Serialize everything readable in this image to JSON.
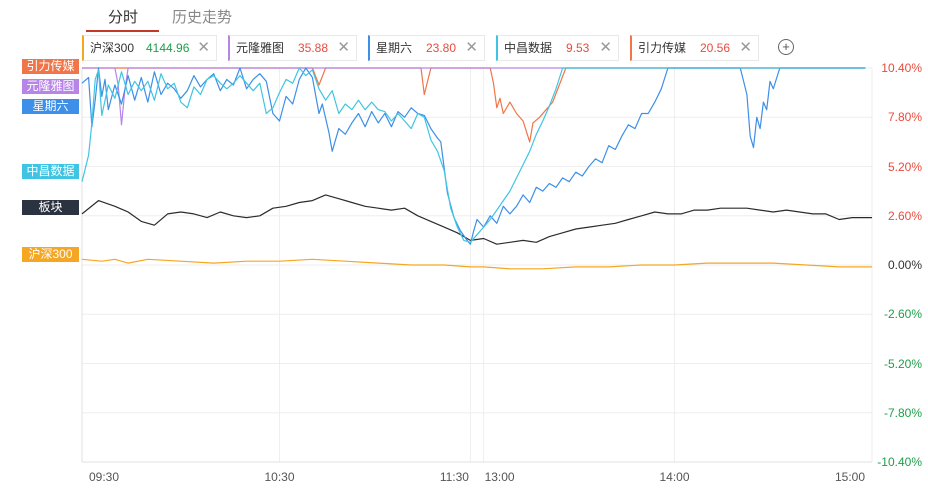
{
  "tabs": [
    {
      "label": "分时",
      "active": true
    },
    {
      "label": "历史走势",
      "active": false
    }
  ],
  "legend": [
    {
      "name": "沪深300",
      "value": "4144.96",
      "color": "#f5a623",
      "value_color": "#1e9e4a"
    },
    {
      "name": "元隆雅图",
      "value": "35.88",
      "color": "#b784e8",
      "value_color": "#e84c3d"
    },
    {
      "name": "星期六",
      "value": "23.80",
      "color": "#3d8fe8",
      "value_color": "#e84c3d"
    },
    {
      "name": "中昌数据",
      "value": "9.53",
      "color": "#3fc5e3",
      "value_color": "#e84c3d"
    },
    {
      "name": "引力传媒",
      "value": "20.56",
      "color": "#f07548",
      "value_color": "#e84c3d"
    }
  ],
  "add_icon": "plus-circle-icon",
  "close_icon": "close-icon",
  "badges": [
    {
      "label": "引力传媒",
      "color": "#f07548"
    },
    {
      "label": "元隆雅图",
      "color": "#b784e8"
    },
    {
      "label": "星期六",
      "color": "#3d8fe8"
    },
    {
      "label": "中昌数据",
      "color": "#3fc5e3"
    },
    {
      "label": "板块",
      "color": "#2c3340"
    },
    {
      "label": "沪深300",
      "color": "#f5a623"
    }
  ],
  "chart_data": {
    "type": "line",
    "y_unit": "%",
    "ylim": [
      -10.4,
      10.4
    ],
    "y_ticks": [
      "10.40%",
      "7.80%",
      "5.20%",
      "2.60%",
      "0.00%",
      "-2.60%",
      "-5.20%",
      "-7.80%",
      "-10.40%"
    ],
    "y_tick_colors": {
      "positive": "#e84c3d",
      "zero": "#333333",
      "negative": "#1e9e4a"
    },
    "x_ticks": [
      "09:30",
      "10:30",
      "11:30",
      "13:00",
      "14:00",
      "15:00"
    ],
    "x_tick_times": [
      0,
      60,
      118,
      122,
      180,
      240
    ],
    "x_range": [
      0,
      240
    ],
    "grid": true,
    "series": [
      {
        "name": "板块",
        "color": "#2c2c2c",
        "points": [
          [
            0,
            2.7
          ],
          [
            5,
            3.4
          ],
          [
            10,
            3.1
          ],
          [
            14,
            2.8
          ],
          [
            18,
            2.3
          ],
          [
            22,
            2.1
          ],
          [
            26,
            2.7
          ],
          [
            30,
            2.8
          ],
          [
            34,
            2.7
          ],
          [
            38,
            2.5
          ],
          [
            42,
            2.8
          ],
          [
            46,
            2.6
          ],
          [
            50,
            2.5
          ],
          [
            54,
            2.6
          ],
          [
            58,
            3.0
          ],
          [
            62,
            3.1
          ],
          [
            66,
            3.3
          ],
          [
            70,
            3.4
          ],
          [
            74,
            3.7
          ],
          [
            78,
            3.5
          ],
          [
            82,
            3.3
          ],
          [
            86,
            3.1
          ],
          [
            90,
            3.0
          ],
          [
            94,
            2.9
          ],
          [
            98,
            3.0
          ],
          [
            102,
            2.6
          ],
          [
            106,
            2.3
          ],
          [
            110,
            2.0
          ],
          [
            114,
            1.7
          ],
          [
            118,
            1.3
          ],
          [
            122,
            1.4
          ],
          [
            126,
            1.1
          ],
          [
            130,
            1.2
          ],
          [
            134,
            1.3
          ],
          [
            138,
            1.2
          ],
          [
            142,
            1.5
          ],
          [
            146,
            1.7
          ],
          [
            150,
            1.9
          ],
          [
            154,
            2.0
          ],
          [
            158,
            2.1
          ],
          [
            162,
            2.2
          ],
          [
            166,
            2.4
          ],
          [
            170,
            2.6
          ],
          [
            174,
            2.8
          ],
          [
            178,
            2.7
          ],
          [
            182,
            2.7
          ],
          [
            186,
            2.9
          ],
          [
            190,
            2.9
          ],
          [
            194,
            3.0
          ],
          [
            198,
            3.0
          ],
          [
            202,
            3.0
          ],
          [
            206,
            2.9
          ],
          [
            210,
            2.8
          ],
          [
            214,
            2.9
          ],
          [
            218,
            2.8
          ],
          [
            222,
            2.7
          ],
          [
            226,
            2.7
          ],
          [
            230,
            2.4
          ],
          [
            234,
            2.5
          ],
          [
            238,
            2.5
          ],
          [
            240,
            2.5
          ]
        ]
      },
      {
        "name": "沪深300",
        "color": "#f5a623",
        "points": [
          [
            0,
            0.3
          ],
          [
            6,
            0.2
          ],
          [
            10,
            0.3
          ],
          [
            14,
            0.1
          ],
          [
            20,
            0.3
          ],
          [
            30,
            0.2
          ],
          [
            40,
            0.1
          ],
          [
            50,
            0.2
          ],
          [
            60,
            0.2
          ],
          [
            70,
            0.3
          ],
          [
            80,
            0.2
          ],
          [
            90,
            0.1
          ],
          [
            100,
            0.0
          ],
          [
            110,
            0.0
          ],
          [
            118,
            -0.1
          ],
          [
            122,
            -0.1
          ],
          [
            130,
            -0.2
          ],
          [
            140,
            -0.2
          ],
          [
            150,
            -0.1
          ],
          [
            160,
            -0.1
          ],
          [
            170,
            0.0
          ],
          [
            180,
            0.0
          ],
          [
            190,
            0.1
          ],
          [
            200,
            0.1
          ],
          [
            210,
            0.1
          ],
          [
            220,
            0.0
          ],
          [
            230,
            -0.1
          ],
          [
            240,
            -0.1
          ]
        ]
      },
      {
        "name": "引力传媒",
        "color": "#f07548",
        "points": [
          [
            0,
            10.4
          ],
          [
            70,
            10.4
          ],
          [
            72,
            9.5
          ],
          [
            74,
            10.4
          ],
          [
            103,
            10.4
          ],
          [
            104,
            9.0
          ],
          [
            106,
            10.4
          ],
          [
            124,
            10.4
          ],
          [
            125,
            9.6
          ],
          [
            126,
            8.3
          ],
          [
            127,
            8.8
          ],
          [
            128,
            8.0
          ],
          [
            130,
            8.6
          ],
          [
            132,
            8.0
          ],
          [
            134,
            7.6
          ],
          [
            136,
            6.5
          ],
          [
            137,
            7.5
          ],
          [
            139,
            7.8
          ],
          [
            141,
            8.2
          ],
          [
            143,
            8.6
          ],
          [
            145,
            9.5
          ],
          [
            147,
            10.4
          ],
          [
            238,
            10.4
          ]
        ]
      },
      {
        "name": "元隆雅图",
        "color": "#b784e8",
        "points": [
          [
            0,
            10.4
          ],
          [
            10,
            10.4
          ],
          [
            11,
            9.5
          ],
          [
            12,
            7.4
          ],
          [
            13,
            9.2
          ],
          [
            14,
            10.4
          ],
          [
            238,
            10.4
          ]
        ]
      },
      {
        "name": "星期六",
        "color": "#3d8fe8",
        "points": [
          [
            0,
            9.6
          ],
          [
            2,
            9.9
          ],
          [
            3,
            7.3
          ],
          [
            4,
            8.7
          ],
          [
            5,
            10.4
          ],
          [
            6,
            8.9
          ],
          [
            7,
            9.8
          ],
          [
            8,
            8.2
          ],
          [
            10,
            9.5
          ],
          [
            12,
            8.5
          ],
          [
            14,
            10.0
          ],
          [
            16,
            8.7
          ],
          [
            18,
            9.9
          ],
          [
            20,
            8.6
          ],
          [
            22,
            10.2
          ],
          [
            24,
            9.0
          ],
          [
            26,
            9.6
          ],
          [
            28,
            9.3
          ],
          [
            30,
            8.8
          ],
          [
            32,
            9.2
          ],
          [
            34,
            10.0
          ],
          [
            36,
            9.4
          ],
          [
            38,
            9.8
          ],
          [
            40,
            10.1
          ],
          [
            42,
            9.2
          ],
          [
            44,
            9.8
          ],
          [
            46,
            9.5
          ],
          [
            48,
            10.4
          ],
          [
            50,
            9.3
          ],
          [
            52,
            9.8
          ],
          [
            54,
            10.1
          ],
          [
            56,
            9.7
          ],
          [
            58,
            8.0
          ],
          [
            60,
            7.6
          ],
          [
            62,
            8.9
          ],
          [
            64,
            8.5
          ],
          [
            66,
            9.8
          ],
          [
            68,
            10.4
          ],
          [
            70,
            9.9
          ],
          [
            72,
            8.0
          ],
          [
            73,
            8.5
          ],
          [
            75,
            7.0
          ],
          [
            76,
            6.0
          ],
          [
            78,
            7.2
          ],
          [
            80,
            6.9
          ],
          [
            82,
            7.5
          ],
          [
            84,
            8.0
          ],
          [
            86,
            7.3
          ],
          [
            88,
            8.1
          ],
          [
            90,
            7.5
          ],
          [
            92,
            8.0
          ],
          [
            94,
            7.3
          ],
          [
            96,
            8.1
          ],
          [
            98,
            7.8
          ],
          [
            100,
            8.3
          ],
          [
            102,
            8.0
          ],
          [
            104,
            7.9
          ],
          [
            106,
            7.2
          ],
          [
            108,
            6.7
          ],
          [
            109,
            6.5
          ],
          [
            111,
            3.8
          ],
          [
            113,
            2.5
          ],
          [
            115,
            1.8
          ],
          [
            117,
            1.3
          ],
          [
            118,
            1.1
          ],
          [
            119,
            1.8
          ],
          [
            120,
            2.4
          ],
          [
            122,
            2.0
          ],
          [
            124,
            2.6
          ],
          [
            126,
            2.2
          ],
          [
            128,
            3.1
          ],
          [
            130,
            2.7
          ],
          [
            132,
            3.1
          ],
          [
            134,
            3.7
          ],
          [
            136,
            3.3
          ],
          [
            138,
            4.1
          ],
          [
            140,
            3.9
          ],
          [
            142,
            4.3
          ],
          [
            144,
            4.1
          ],
          [
            146,
            4.6
          ],
          [
            148,
            4.4
          ],
          [
            150,
            4.9
          ],
          [
            152,
            4.7
          ],
          [
            154,
            5.2
          ],
          [
            156,
            5.6
          ],
          [
            158,
            5.4
          ],
          [
            160,
            6.3
          ],
          [
            162,
            6.1
          ],
          [
            164,
            6.8
          ],
          [
            166,
            7.4
          ],
          [
            168,
            7.2
          ],
          [
            170,
            8.0
          ],
          [
            172,
            8.0
          ],
          [
            174,
            8.6
          ],
          [
            176,
            9.3
          ],
          [
            178,
            10.4
          ],
          [
            198,
            10.4
          ],
          [
            200,
            10.4
          ],
          [
            202,
            9.0
          ],
          [
            203,
            6.8
          ],
          [
            204,
            6.2
          ],
          [
            205,
            7.8
          ],
          [
            206,
            7.2
          ],
          [
            207,
            8.6
          ],
          [
            208,
            8.2
          ],
          [
            209,
            9.7
          ],
          [
            210,
            9.3
          ],
          [
            212,
            10.4
          ],
          [
            238,
            10.4
          ]
        ]
      },
      {
        "name": "中昌数据",
        "color": "#3fc5e3",
        "points": [
          [
            0,
            4.4
          ],
          [
            2,
            5.8
          ],
          [
            3,
            7.5
          ],
          [
            4,
            9.8
          ],
          [
            5,
            10.3
          ],
          [
            6,
            7.9
          ],
          [
            8,
            9.5
          ],
          [
            10,
            8.8
          ],
          [
            12,
            10.2
          ],
          [
            14,
            9.0
          ],
          [
            16,
            9.7
          ],
          [
            18,
            9.2
          ],
          [
            20,
            9.7
          ],
          [
            22,
            8.7
          ],
          [
            24,
            10.1
          ],
          [
            26,
            9.3
          ],
          [
            28,
            9.6
          ],
          [
            30,
            8.6
          ],
          [
            32,
            8.3
          ],
          [
            34,
            9.4
          ],
          [
            36,
            9.0
          ],
          [
            38,
            9.8
          ],
          [
            40,
            10.0
          ],
          [
            42,
            9.6
          ],
          [
            44,
            9.3
          ],
          [
            46,
            9.6
          ],
          [
            48,
            10.0
          ],
          [
            50,
            9.6
          ],
          [
            52,
            9.2
          ],
          [
            54,
            9.6
          ],
          [
            56,
            8.0
          ],
          [
            58,
            8.3
          ],
          [
            60,
            9.1
          ],
          [
            62,
            9.8
          ],
          [
            64,
            9.6
          ],
          [
            66,
            10.4
          ],
          [
            68,
            10.0
          ],
          [
            70,
            10.3
          ],
          [
            72,
            9.3
          ],
          [
            74,
            8.7
          ],
          [
            76,
            9.2
          ],
          [
            78,
            8.0
          ],
          [
            80,
            8.5
          ],
          [
            82,
            8.2
          ],
          [
            84,
            8.7
          ],
          [
            86,
            8.2
          ],
          [
            88,
            8.6
          ],
          [
            90,
            8.2
          ],
          [
            92,
            8.1
          ],
          [
            94,
            7.6
          ],
          [
            96,
            8.0
          ],
          [
            98,
            7.6
          ],
          [
            100,
            7.2
          ],
          [
            102,
            8.0
          ],
          [
            104,
            7.8
          ],
          [
            106,
            6.6
          ],
          [
            108,
            6.0
          ],
          [
            110,
            5.0
          ],
          [
            112,
            3.0
          ],
          [
            114,
            2.0
          ],
          [
            116,
            1.3
          ],
          [
            118,
            1.2
          ],
          [
            120,
            1.6
          ],
          [
            122,
            2.0
          ],
          [
            124,
            2.4
          ],
          [
            126,
            2.9
          ],
          [
            128,
            3.4
          ],
          [
            130,
            3.9
          ],
          [
            132,
            4.6
          ],
          [
            134,
            5.3
          ],
          [
            136,
            6.0
          ],
          [
            138,
            6.9
          ],
          [
            140,
            7.6
          ],
          [
            142,
            8.4
          ],
          [
            144,
            9.3
          ],
          [
            146,
            10.4
          ],
          [
            238,
            10.4
          ]
        ]
      }
    ]
  }
}
